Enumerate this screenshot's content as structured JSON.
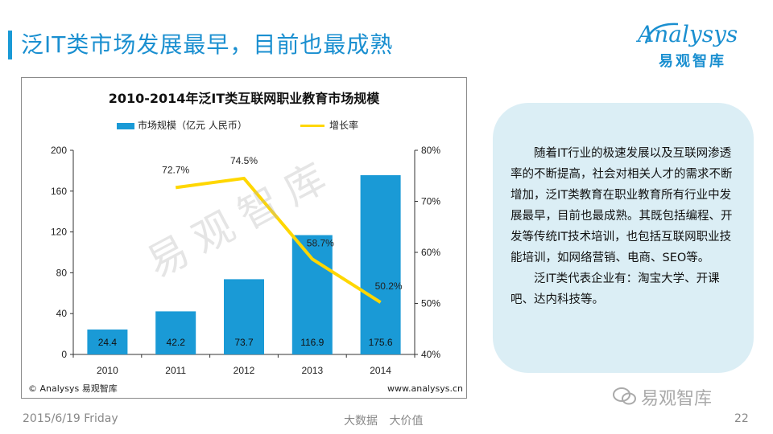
{
  "slide": {
    "title": "泛IT类市场发展最早，目前也最成熟",
    "logo_word": "nalysys",
    "logo_letter": "A",
    "logo_sub": "易观智库",
    "watermark": "易观智库",
    "wechat_label": "易观智库",
    "footer_date": "2015/6/19 Friday",
    "footer_center": "大数据 大价值",
    "page_number": "22"
  },
  "chart_data": {
    "type": "bar+line",
    "title": "2010-2014年泛IT类互联网职业教育市场规模",
    "categories": [
      "2010",
      "2011",
      "2012",
      "2013",
      "2014"
    ],
    "series": [
      {
        "name": "市场规模（亿元 人民币）",
        "type": "bar",
        "axis": "left",
        "values": [
          24.4,
          42.2,
          73.7,
          116.9,
          175.6
        ],
        "labels": [
          "24.4",
          "42.2",
          "73.7",
          "116.9",
          "175.6"
        ],
        "color": "#1a9ad6"
      },
      {
        "name": "增长率",
        "type": "line",
        "axis": "right",
        "values": [
          null,
          72.7,
          74.5,
          58.7,
          50.2
        ],
        "labels": [
          "",
          "72.7%",
          "74.5%",
          "58.7%",
          "50.2%"
        ],
        "color": "#ffd700"
      }
    ],
    "y_left": {
      "min": 0,
      "max": 200,
      "ticks": [
        0,
        40,
        80,
        120,
        160,
        200
      ],
      "tick_labels": [
        "0",
        "40",
        "80",
        "120",
        "160",
        "200"
      ]
    },
    "y_right": {
      "min": 40,
      "max": 80,
      "ticks": [
        40,
        50,
        60,
        70,
        80
      ],
      "tick_labels": [
        "40%",
        "50%",
        "60%",
        "70%",
        "80%"
      ]
    },
    "legend_position": "top",
    "grid": false,
    "source_left": "© Analysys 易观智库",
    "source_right": "www.analysys.cn"
  },
  "callout": {
    "paragraphs": [
      "随着IT行业的极速发展以及互联网渗透率的不断提高，社会对相关人才的需求不断增加，泛IT类教育在职业教育所有行业中发展最早，目前也最成熟。其既包括编程、开发等传统IT技术培训，也包括互联网职业技能培训，如网络营销、电商、SEO等。",
      "泛IT类代表企业有：淘宝大学、开课吧、达内科技等。"
    ],
    "bg_color": "#dbeef5"
  },
  "colors": {
    "accent": "#1a9ad6",
    "line": "#ffd700"
  }
}
